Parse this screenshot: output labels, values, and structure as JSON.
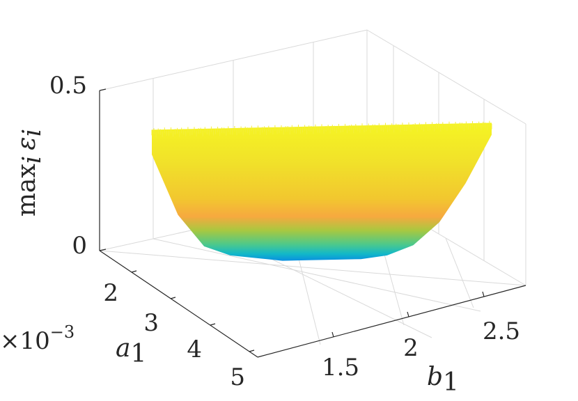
{
  "chart_data": {
    "type": "surface",
    "colormap": "parula",
    "grid": true,
    "xlabel": "b",
    "xlabel_sub": "1",
    "ylabel": "a",
    "ylabel_sub": "1",
    "zlabel": "max",
    "zlabel_sub": "i",
    "zlabel_var": "ε",
    "zlabel_var_sub": "i",
    "y_exponent_base": "×10",
    "y_exponent_power": "−3",
    "x_ticks": [
      "1.5",
      "2",
      "2.5"
    ],
    "y_ticks": [
      "2",
      "3",
      "4",
      "5"
    ],
    "z_ticks": [
      "0",
      "0.5"
    ],
    "xlim": [
      1.2,
      2.7
    ],
    "ylim": [
      0.0015,
      0.005
    ],
    "zlim": [
      0,
      0.5
    ],
    "b_values": [
      1.3,
      1.4,
      1.5,
      1.6,
      1.7,
      1.8,
      1.9,
      2.0,
      2.1,
      2.2,
      2.3,
      2.4,
      2.5,
      2.6
    ],
    "max_eps_front": [
      0.35,
      0.16,
      0.06,
      0.03,
      0.02,
      0.01,
      0.01,
      0.01,
      0.01,
      0.02,
      0.05,
      0.12,
      0.24,
      0.39
    ],
    "max_eps_back": [
      0.41,
      0.41,
      0.41,
      0.41,
      0.41,
      0.41,
      0.41,
      0.41,
      0.41,
      0.41,
      0.41,
      0.41,
      0.41,
      0.41
    ]
  }
}
